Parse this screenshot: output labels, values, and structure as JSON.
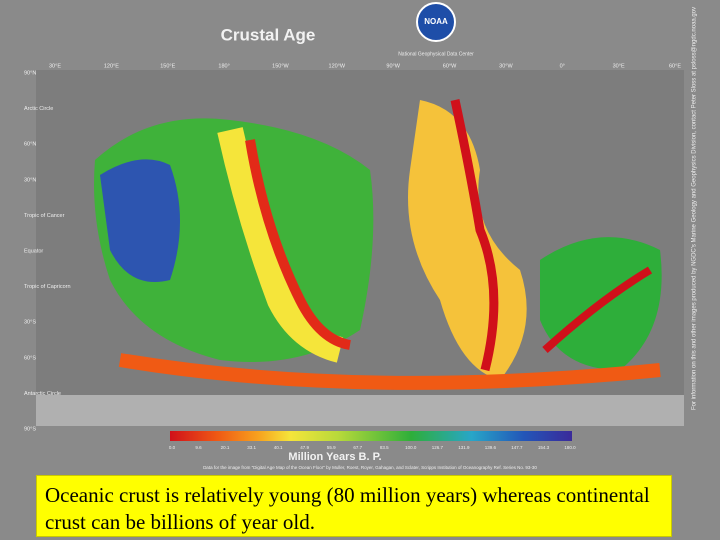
{
  "header": {
    "title": "Crustal Age"
  },
  "logo": {
    "text": "NOAA",
    "caption": "National Geophysical Data Center"
  },
  "map": {
    "lon_labels": [
      "30°E",
      "120°E",
      "150°E",
      "180°",
      "150°W",
      "120°W",
      "90°W",
      "60°W",
      "30°W",
      "0°",
      "30°E",
      "60°E"
    ],
    "lat_labels": [
      "90°N",
      "Arctic Circle",
      "60°N",
      "30°N",
      "Tropic of Cancer",
      "Equator",
      "Tropic of Capricorn",
      "30°S",
      "60°S",
      "Antarctic Circle",
      "90°S"
    ]
  },
  "legend": {
    "ticks": [
      "0.0",
      "9.6",
      "20.1",
      "33.1",
      "40.1",
      "47.9",
      "55.9",
      "67.7",
      "83.5",
      "100.0",
      "126.7",
      "131.9",
      "139.6",
      "147.7",
      "154.3",
      "180.0"
    ],
    "title": "Million Years B. P.",
    "source": "Data for the image from \"Digital Age Map of the Ocean Floor\" by Muller, Roest, Royer, Gahagan, and Sclater, Scripps Institution of Oceanography Ref. Series No. 93-30"
  },
  "credit": "For information on this and other images produced by NGDC's Marine Geology and Geophysics Division, contact Peter Sloss at psloss@ngdc.noaa.gov",
  "caption": "Oceanic crust is relatively young (80 million years)  whereas continental crust can be billions of year old."
}
